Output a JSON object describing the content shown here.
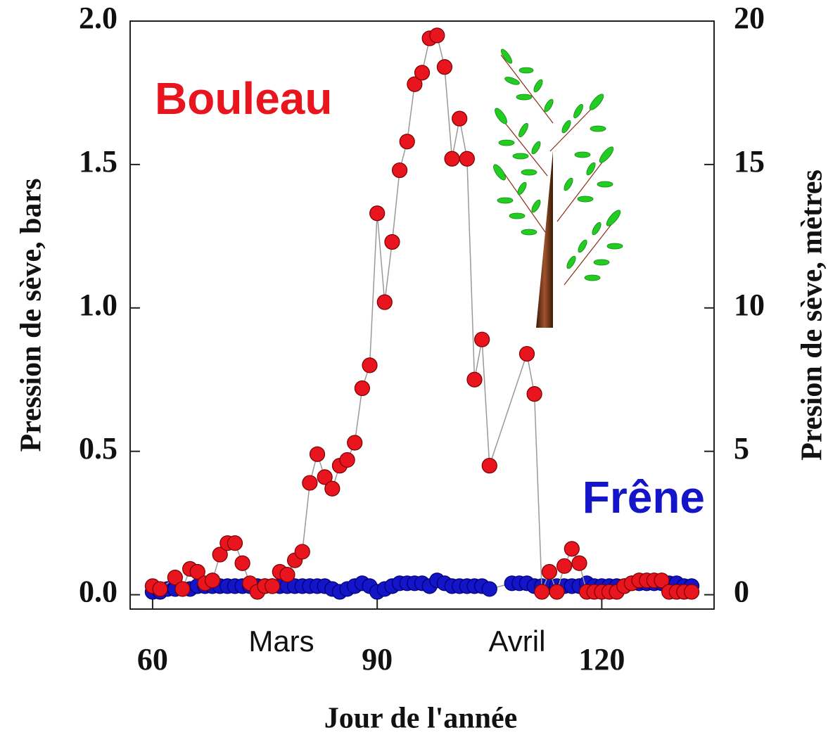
{
  "chart_data": {
    "type": "line",
    "xlabel": "Jour de l'année",
    "ylabel": "Pression de sève, bars",
    "y2label": "Presion de sève, mètres",
    "xlim": [
      57,
      135
    ],
    "xticks": [
      60,
      90,
      120
    ],
    "ylim": [
      -0.05,
      2.0
    ],
    "yticks": [
      {
        "value": 0,
        "label": "0.0"
      },
      0.5,
      {
        "value": 1,
        "label": "1.0"
      },
      1.5,
      {
        "value": 2,
        "label": "2.0"
      }
    ],
    "y2lim": [
      -0.5,
      20
    ],
    "y2ticks": [
      0,
      5,
      10,
      15,
      20
    ],
    "annotations": [
      "Mars",
      "Avril"
    ],
    "line_color": "#999999",
    "series": [
      {
        "name": "Frêne",
        "color": "#1414c8",
        "x": [
          60,
          61,
          62,
          63,
          64,
          65,
          66,
          67,
          68,
          69,
          70,
          71,
          72,
          73,
          74,
          75,
          76,
          77,
          78,
          79,
          80,
          81,
          82,
          83,
          84,
          85,
          86,
          87,
          88,
          89,
          90,
          91,
          92,
          93,
          94,
          95,
          96,
          97,
          98,
          99,
          100,
          101,
          102,
          103,
          104,
          105,
          108,
          109,
          110,
          111,
          112,
          113,
          114,
          115,
          116,
          117,
          118,
          119,
          120,
          121,
          122,
          123,
          124,
          125,
          126,
          127,
          128,
          129,
          130,
          131,
          132
        ],
        "values": [
          0.01,
          0.01,
          0.02,
          0.02,
          0.02,
          0.02,
          0.03,
          0.03,
          0.03,
          0.03,
          0.03,
          0.03,
          0.03,
          0.03,
          0.03,
          0.03,
          0.03,
          0.03,
          0.03,
          0.03,
          0.03,
          0.03,
          0.03,
          0.03,
          0.02,
          0.01,
          0.02,
          0.03,
          0.04,
          0.03,
          0.01,
          0.02,
          0.03,
          0.04,
          0.04,
          0.04,
          0.04,
          0.03,
          0.05,
          0.04,
          0.03,
          0.03,
          0.03,
          0.03,
          0.03,
          0.02,
          0.04,
          0.04,
          0.04,
          0.03,
          0.03,
          0.03,
          0.03,
          0.03,
          0.03,
          0.03,
          0.04,
          0.03,
          0.03,
          0.03,
          0.03,
          0.03,
          0.04,
          0.04,
          0.04,
          0.04,
          0.04,
          0.04,
          0.04,
          0.03,
          0.03
        ]
      },
      {
        "name": "Bouleau",
        "color": "#e8141e",
        "x": [
          60,
          61,
          63,
          64,
          65,
          66,
          67,
          68,
          69,
          70,
          71,
          72,
          73,
          74,
          75,
          76,
          77,
          78,
          79,
          80,
          81,
          82,
          83,
          84,
          85,
          86,
          87,
          88,
          89,
          90,
          91,
          92,
          93,
          94,
          95,
          96,
          97,
          98,
          99,
          100,
          101,
          102,
          103,
          104,
          105,
          110,
          111,
          112,
          113,
          114,
          115,
          116,
          117,
          118,
          119,
          120,
          121,
          122,
          123,
          124,
          125,
          126,
          127,
          128,
          129,
          130,
          131,
          132
        ],
        "values": [
          0.03,
          0.02,
          0.06,
          0.02,
          0.09,
          0.08,
          0.04,
          0.05,
          0.14,
          0.18,
          0.18,
          0.11,
          0.04,
          0.01,
          0.03,
          0.03,
          0.08,
          0.07,
          0.12,
          0.15,
          0.39,
          0.49,
          0.41,
          0.37,
          0.45,
          0.47,
          0.53,
          0.72,
          0.8,
          1.33,
          1.02,
          1.23,
          1.48,
          1.58,
          1.78,
          1.82,
          1.94,
          1.95,
          1.84,
          1.52,
          1.66,
          1.52,
          0.75,
          0.89,
          0.45,
          0.84,
          0.7,
          0.01,
          0.08,
          0.01,
          0.1,
          0.16,
          0.11,
          0.01,
          0.01,
          0.01,
          0.01,
          0.01,
          0.03,
          0.04,
          0.05,
          0.05,
          0.05,
          0.05,
          0.01,
          0.01,
          0.01,
          0.01
        ]
      }
    ]
  }
}
